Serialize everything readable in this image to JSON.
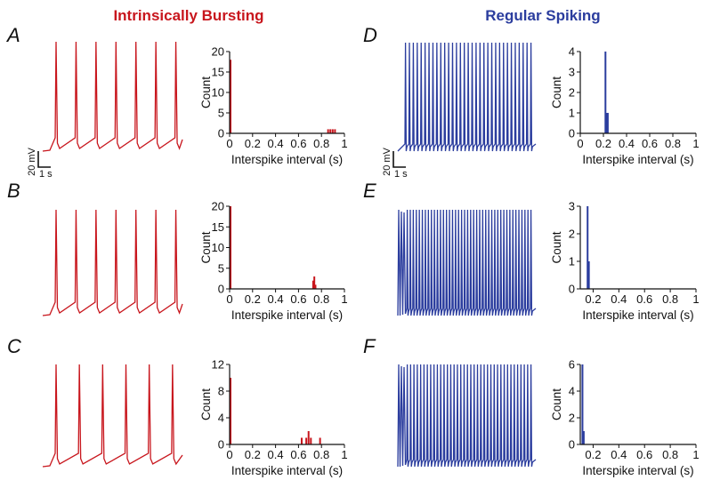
{
  "titles": {
    "left": "Intrinsically Bursting",
    "right": "Regular Spiking"
  },
  "colors": {
    "bursting": "#c8161d",
    "regular": "#2b3d9e",
    "axis": "#111111"
  },
  "scale_bar": {
    "voltage_label": "20 mV",
    "time_label": "1 s"
  },
  "chart_data": [
    {
      "panel": "A",
      "type": "bar",
      "group": "bursting",
      "xlabel": "Interspike interval (s)",
      "ylabel": "Count",
      "xlim": [
        0,
        1
      ],
      "ylim": [
        0,
        20
      ],
      "xticks": [
        "0",
        "0.2",
        "0.4",
        "0.6",
        "0.8",
        "1"
      ],
      "xtick_values": [
        0,
        0.2,
        0.4,
        0.6,
        0.8,
        1
      ],
      "yticks": [
        "0",
        "5",
        "10",
        "15",
        "20"
      ],
      "ytick_values": [
        0,
        5,
        10,
        15,
        20
      ],
      "bin_width": 0.01,
      "bins": [
        [
          0.0,
          18
        ],
        [
          0.85,
          1
        ],
        [
          0.87,
          1
        ],
        [
          0.89,
          1
        ],
        [
          0.91,
          1
        ]
      ],
      "trace": {
        "spikes": 7,
        "duration_s": 6.5,
        "burst_at_start": false
      }
    },
    {
      "panel": "B",
      "type": "bar",
      "group": "bursting",
      "xlabel": "Interspike interval (s)",
      "ylabel": "Count",
      "xlim": [
        0,
        1
      ],
      "ylim": [
        0,
        20
      ],
      "xticks": [
        "0",
        "0.2",
        "0.4",
        "0.6",
        "0.8",
        "1"
      ],
      "xtick_values": [
        0,
        0.2,
        0.4,
        0.6,
        0.8,
        1
      ],
      "yticks": [
        "0",
        "5",
        "10",
        "15",
        "20"
      ],
      "ytick_values": [
        0,
        5,
        10,
        15,
        20
      ],
      "bin_width": 0.01,
      "bins": [
        [
          0.0,
          20
        ],
        [
          0.72,
          2
        ],
        [
          0.73,
          3
        ],
        [
          0.74,
          1
        ]
      ],
      "trace": {
        "spikes": 7,
        "duration_s": 5.6,
        "burst_at_start": false
      }
    },
    {
      "panel": "C",
      "type": "bar",
      "group": "bursting",
      "xlabel": "Interspike interval (s)",
      "ylabel": "Count",
      "xlim": [
        0,
        1
      ],
      "ylim": [
        0,
        12
      ],
      "xticks": [
        "0",
        "0.2",
        "0.4",
        "0.6",
        "0.8",
        "1"
      ],
      "xtick_values": [
        0,
        0.2,
        0.4,
        0.6,
        0.8,
        1
      ],
      "yticks": [
        "0",
        "4",
        "8",
        "12"
      ],
      "ytick_values": [
        0,
        4,
        8,
        12
      ],
      "bin_width": 0.01,
      "bins": [
        [
          0.0,
          10
        ],
        [
          0.62,
          1
        ],
        [
          0.66,
          1
        ],
        [
          0.68,
          2
        ],
        [
          0.7,
          1
        ],
        [
          0.78,
          1
        ]
      ],
      "trace": {
        "spikes": 6,
        "duration_s": 5.6,
        "burst_at_start": false
      }
    },
    {
      "panel": "D",
      "type": "bar",
      "group": "regular",
      "xlabel": "Interspike interval (s)",
      "ylabel": "Count",
      "xlim": [
        0,
        1
      ],
      "ylim": [
        0,
        4
      ],
      "xticks": [
        "0",
        "0.2",
        "0.4",
        "0.6",
        "0.8",
        "1"
      ],
      "xtick_values": [
        0,
        0.2,
        0.4,
        0.6,
        0.8,
        1
      ],
      "yticks": [
        "0",
        "1",
        "2",
        "3",
        "4"
      ],
      "ytick_values": [
        0,
        1,
        2,
        3,
        4
      ],
      "bin_width": 0.01,
      "bins": [
        [
          0.21,
          4
        ],
        [
          0.22,
          1
        ],
        [
          0.23,
          1
        ]
      ],
      "trace": {
        "spikes": 33,
        "duration_s": 6.8,
        "burst_at_start": false
      }
    },
    {
      "panel": "E",
      "type": "bar",
      "group": "regular",
      "xlabel": "Interspike interval (s)",
      "ylabel": "Count",
      "xlim": [
        0.1,
        1
      ],
      "ylim": [
        0,
        3
      ],
      "xticks": [
        "0.2",
        "0.4",
        "0.6",
        "0.8",
        "1"
      ],
      "xtick_values": [
        0.2,
        0.4,
        0.6,
        0.8,
        1
      ],
      "yticks": [
        "0",
        "1",
        "2",
        "3"
      ],
      "ytick_values": [
        0,
        1,
        2,
        3
      ],
      "bin_width": 0.01,
      "bins": [
        [
          0.15,
          3
        ],
        [
          0.16,
          1
        ]
      ],
      "trace": {
        "spikes": 42,
        "duration_s": 6.6,
        "burst_at_start": true
      }
    },
    {
      "panel": "F",
      "type": "bar",
      "group": "regular",
      "xlabel": "Interspike interval (s)",
      "ylabel": "Count",
      "xlim": [
        0.1,
        1
      ],
      "ylim": [
        0,
        6
      ],
      "xticks": [
        "0.2",
        "0.4",
        "0.6",
        "0.8",
        "1"
      ],
      "xtick_values": [
        0.2,
        0.4,
        0.6,
        0.8,
        1
      ],
      "yticks": [
        "0",
        "2",
        "4",
        "6"
      ],
      "ytick_values": [
        0,
        2,
        4,
        6
      ],
      "bin_width": 0.01,
      "bins": [
        [
          0.11,
          6
        ],
        [
          0.12,
          1
        ]
      ],
      "trace": {
        "spikes": 38,
        "duration_s": 6.4,
        "burst_at_start": true
      }
    }
  ]
}
